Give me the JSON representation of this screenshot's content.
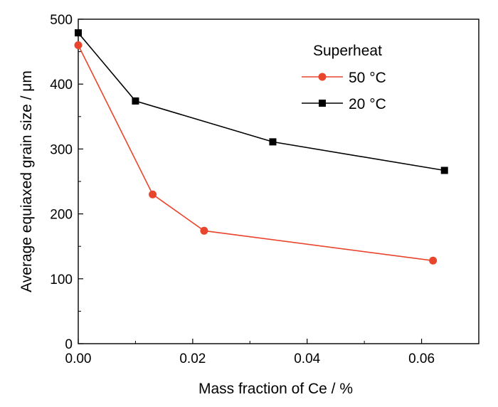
{
  "chart_data": {
    "type": "line",
    "title": "",
    "xlabel": "Mass fraction of Ce / %",
    "ylabel": "Average equiaxed grain size / μm",
    "xlim": [
      0,
      0.07
    ],
    "ylim": [
      0,
      500
    ],
    "xticks": [
      "0.00",
      "0.02",
      "0.04",
      "0.06"
    ],
    "yticks": [
      "0",
      "100",
      "200",
      "300",
      "400",
      "500"
    ],
    "legend": {
      "title": "Superheat",
      "placement": "top-right"
    },
    "series": [
      {
        "name": "50 °C",
        "color": "#e8452c",
        "marker": "circle",
        "x": [
          0.0,
          0.013,
          0.022,
          0.062
        ],
        "y": [
          460,
          230,
          174,
          128
        ]
      },
      {
        "name": "20 °C",
        "color": "#000000",
        "marker": "square",
        "x": [
          0.0,
          0.01,
          0.034,
          0.064
        ],
        "y": [
          479,
          374,
          311,
          267
        ]
      }
    ]
  }
}
